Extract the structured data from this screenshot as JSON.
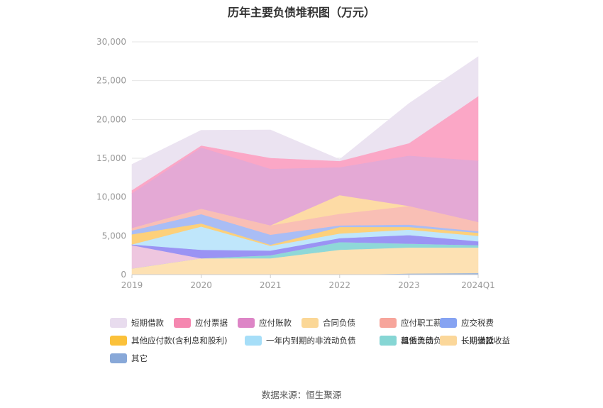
{
  "title": "历年主要负债堆积图（万元）",
  "source": "数据来源：恒生聚源",
  "chart_data": {
    "type": "area",
    "stacked": true,
    "title": "历年主要负债堆积图（万元）",
    "categories": [
      "2019",
      "2020",
      "2021",
      "2022",
      "2023",
      "2024Q1"
    ],
    "ylim": [
      0,
      30000
    ],
    "yticks": [
      "0",
      "5,000",
      "10,000",
      "15,000",
      "20,000",
      "25,000",
      "30,000"
    ],
    "grid": true,
    "legend_position": "bottom",
    "series": [
      {
        "name": "其它",
        "color": "#8fb0e0",
        "values": [
          0,
          0,
          0,
          0,
          150,
          200
        ]
      },
      {
        "name": "长期递延收益",
        "color": "#fde1b3",
        "values": [
          800,
          2100,
          2100,
          3200,
          3350,
          3300
        ]
      },
      {
        "name": "租赁负债",
        "color": "#8ed8d8",
        "values": [
          0,
          0,
          400,
          1000,
          500,
          300
        ]
      },
      {
        "name": "长期借款",
        "color": "#eec6df",
        "values": [
          3000,
          0,
          0,
          0,
          0,
          0
        ]
      },
      {
        "name": "其他流动负债",
        "color": "#9a93f4",
        "values": [
          100,
          1100,
          600,
          500,
          1100,
          500
        ]
      },
      {
        "name": "一年内到期的非流动负债",
        "color": "#bfe6fb",
        "values": [
          0,
          3000,
          600,
          600,
          700,
          700
        ]
      },
      {
        "name": "其他应付款(含利息和股利)",
        "color": "#fdd07a",
        "values": [
          1300,
          400,
          150,
          850,
          350,
          400
        ]
      },
      {
        "name": "应交税费",
        "color": "#a9bdf5",
        "values": [
          500,
          1200,
          1300,
          200,
          300,
          200
        ]
      },
      {
        "name": "应付职工薪酬",
        "color": "#f9bfb5",
        "values": [
          300,
          700,
          1200,
          1500,
          2400,
          1200
        ]
      },
      {
        "name": "合同负债",
        "color": "#fddba5",
        "values": [
          0,
          0,
          0,
          2400,
          0,
          0
        ]
      },
      {
        "name": "应付账款",
        "color": "#e4a9d5",
        "values": [
          4500,
          7900,
          7300,
          3600,
          6500,
          7900
        ]
      },
      {
        "name": "应付票据",
        "color": "#fba7c6",
        "values": [
          400,
          250,
          1400,
          800,
          1600,
          8300
        ]
      },
      {
        "name": "短期借款",
        "color": "#ebe3f1",
        "values": [
          3300,
          1950,
          3600,
          200,
          5100,
          5100
        ]
      }
    ]
  },
  "legend": [
    {
      "label": "短期借款",
      "color": "#e8dcee"
    },
    {
      "label": "应付票据",
      "color": "#f587b0"
    },
    {
      "label": "应付账款",
      "color": "#dd85c6"
    },
    {
      "label": "合同负债",
      "color": "#fbd796"
    },
    {
      "label": "应付职工薪酬",
      "color": "#f7a59b"
    },
    {
      "label": "应交税费",
      "color": "#86a3f2"
    },
    {
      "label": "其他应付款(含利息和股利)",
      "color": "#fbc13a"
    },
    {
      "label": "一年内到期的非流动负债",
      "color": "#a6def8"
    },
    {
      "label": "其他流动负债",
      "color": "#7b78ef"
    },
    {
      "label": "长期借款",
      "color": "#ecbcda"
    },
    {
      "label": "租赁负债",
      "color": "#86d6d4"
    },
    {
      "label": "长期递延收益",
      "color": "#fbd79a"
    },
    {
      "label": "其它",
      "color": "#88a8d8"
    }
  ]
}
